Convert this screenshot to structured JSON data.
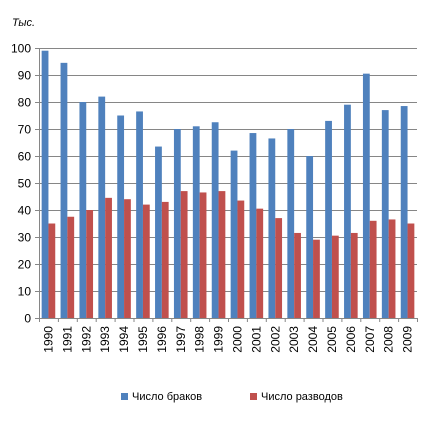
{
  "chart_data": {
    "type": "bar",
    "unit_label": "Тыс.",
    "categories": [
      "1990",
      "1991",
      "1992",
      "1993",
      "1994",
      "1995",
      "1996",
      "1997",
      "1998",
      "1999",
      "2000",
      "2001",
      "2002",
      "2003",
      "2004",
      "2005",
      "2006",
      "2007",
      "2008",
      "2009"
    ],
    "series": [
      {
        "name": "Число браков",
        "color": "#4f81bd",
        "values": [
          99,
          94.5,
          80,
          82,
          75,
          76.5,
          63.5,
          70,
          71,
          72.5,
          62,
          68.5,
          66.5,
          70,
          60,
          73,
          79,
          90.5,
          77,
          78.5
        ]
      },
      {
        "name": "Число разводов",
        "color": "#c0504d",
        "values": [
          35,
          37.5,
          40,
          44.5,
          44,
          42,
          43,
          47,
          46.5,
          47,
          43.5,
          40.5,
          37,
          31.5,
          29,
          30.5,
          31.5,
          36,
          36.5,
          35
        ]
      }
    ],
    "ylim": [
      0,
      100
    ],
    "yticks": [
      0,
      10,
      20,
      30,
      40,
      50,
      60,
      70,
      80,
      90,
      100
    ],
    "grid": true,
    "legend_position": "bottom"
  }
}
